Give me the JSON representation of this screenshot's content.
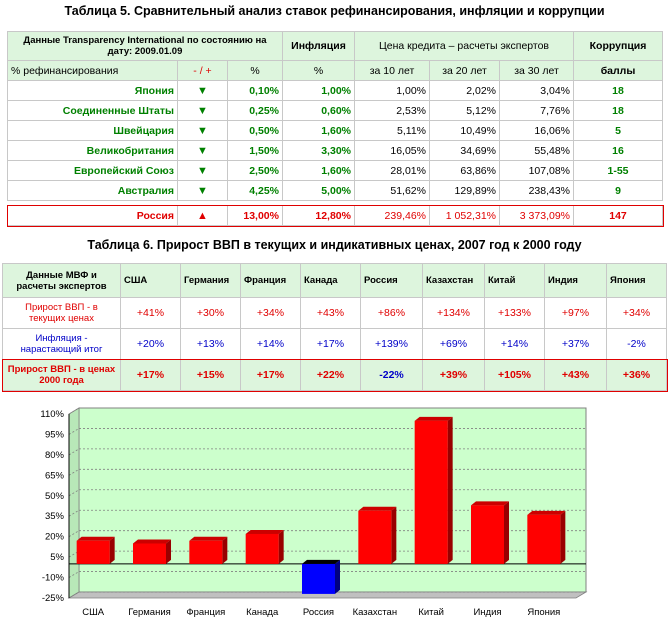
{
  "table5": {
    "title": "Таблица 5. Сравнительный анализ ставок рефинансирования, инфляции и коррупции",
    "header1": {
      "source": "Данные Transparency International по состоянию на дату: 2009.01.09",
      "inflation": "Инфляция",
      "credit_price": "Цена кредита – расчеты экспертов",
      "corruption": "Коррупция"
    },
    "header2": {
      "refinancing": "% рефинансирования",
      "change": "- / +",
      "pct1": "%",
      "pct2": "%",
      "y10": "за 10 лет",
      "y20": "за 20 лет",
      "y30": "за 30 лет",
      "score": "баллы"
    },
    "rows": [
      {
        "country": "Япония",
        "arrow": "▼",
        "rate": "0,10%",
        "inflation": "1,00%",
        "y10": "1,00%",
        "y20": "2,02%",
        "y30": "3,04%",
        "corruption": "18"
      },
      {
        "country": "Соединенные Штаты",
        "arrow": "▼",
        "rate": "0,25%",
        "inflation": "0,60%",
        "y10": "2,53%",
        "y20": "5,12%",
        "y30": "7,76%",
        "corruption": "18"
      },
      {
        "country": "Швейцария",
        "arrow": "▼",
        "rate": "0,50%",
        "inflation": "1,60%",
        "y10": "5,11%",
        "y20": "10,49%",
        "y30": "16,06%",
        "corruption": "5"
      },
      {
        "country": "Великобритания",
        "arrow": "▼",
        "rate": "1,50%",
        "inflation": "3,30%",
        "y10": "16,05%",
        "y20": "34,69%",
        "y30": "55,48%",
        "corruption": "16"
      },
      {
        "country": "Европейский Союз",
        "arrow": "▼",
        "rate": "2,50%",
        "inflation": "1,60%",
        "y10": "28,01%",
        "y20": "63,86%",
        "y30": "107,08%",
        "corruption": "1-55"
      },
      {
        "country": "Австралия",
        "arrow": "▼",
        "rate": "4,25%",
        "inflation": "5,00%",
        "y10": "51,62%",
        "y20": "129,89%",
        "y30": "238,43%",
        "corruption": "9"
      }
    ],
    "russia": {
      "country": "Россия",
      "arrow": "▲",
      "rate": "13,00%",
      "inflation": "12,80%",
      "y10": "239,46%",
      "y20": "1 052,31%",
      "y30": "3 373,09%",
      "corruption": "147"
    }
  },
  "table6": {
    "title": "Таблица 6. Прирост ВВП в текущих и индикативных ценах, 2007 год к 2000 году",
    "corner": "Данные МВФ и расчеты экспертов",
    "countries": [
      "США",
      "Германия",
      "Франция",
      "Канада",
      "Россия",
      "Казахстан",
      "Китай",
      "Индия",
      "Япония"
    ],
    "rows": [
      {
        "label": "Прирост ВВП - в текущих ценах",
        "values": [
          "+41%",
          "+30%",
          "+34%",
          "+43%",
          "+86%",
          "+134%",
          "+133%",
          "+97%",
          "+34%"
        ]
      },
      {
        "label": "Инфляция - нарастающий итог",
        "values": [
          "+20%",
          "+13%",
          "+14%",
          "+17%",
          "+139%",
          "+69%",
          "+14%",
          "+37%",
          "-2%"
        ]
      },
      {
        "label": "Прирост ВВП - в ценах 2000 года",
        "values": [
          "+17%",
          "+15%",
          "+17%",
          "+22%",
          "-22%",
          "+39%",
          "+105%",
          "+43%",
          "+36%"
        ]
      }
    ]
  },
  "chart_data": {
    "type": "bar",
    "categories": [
      "США",
      "Германия",
      "Франция",
      "Канада",
      "Россия",
      "Казахстан",
      "Китай",
      "Индия",
      "Япония"
    ],
    "values": [
      17,
      15,
      17,
      22,
      -22,
      39,
      105,
      43,
      36
    ],
    "yticks": [
      "110%",
      "95%",
      "80%",
      "65%",
      "50%",
      "35%",
      "20%",
      "5%",
      "-10%",
      "-25%"
    ],
    "ylim": [
      -25,
      110
    ],
    "grid": true,
    "colors": {
      "positive": "#ff0000",
      "negative": "#0000ff",
      "plot_bg": "#ccffcc"
    }
  }
}
